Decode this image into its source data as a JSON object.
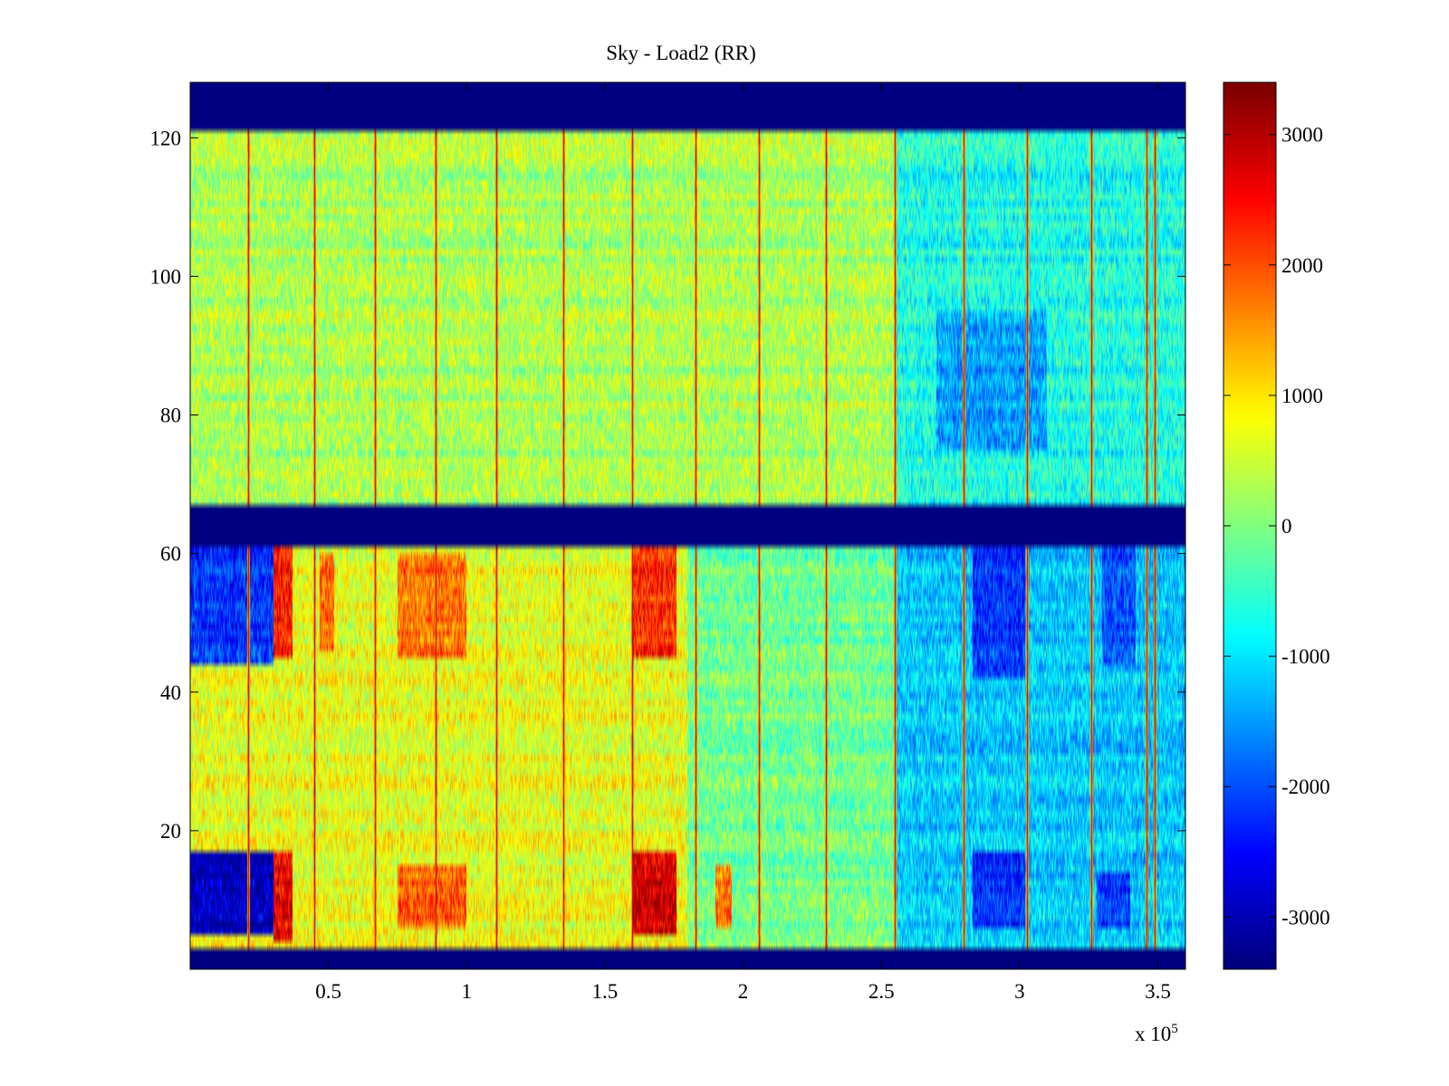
{
  "chart_data": {
    "type": "heatmap",
    "title": "Sky - Load2 (RR)",
    "xlabel": "",
    "ylabel": "",
    "x_multiplier_label": "x 10",
    "x_multiplier_exponent": "5",
    "xlim": [
      0,
      3.6
    ],
    "ylim": [
      0,
      128
    ],
    "x_ticks": [
      0.5,
      1,
      1.5,
      2,
      2.5,
      3,
      3.5
    ],
    "x_tick_labels": [
      "0.5",
      "1",
      "1.5",
      "2",
      "2.5",
      "3",
      "3.5"
    ],
    "y_ticks": [
      20,
      40,
      60,
      80,
      100,
      120
    ],
    "y_tick_labels": [
      "20",
      "40",
      "60",
      "80",
      "100",
      "120"
    ],
    "colorbar": {
      "colormap": "jet",
      "clim": [
        -3400,
        3400
      ],
      "ticks": [
        3000,
        2000,
        1000,
        0,
        -1000,
        -2000,
        -3000
      ],
      "tick_labels": [
        "3000",
        "2000",
        "1000",
        "0",
        "-1000",
        "-2000",
        "-3000"
      ]
    },
    "masked_row_bands": [
      {
        "y_from": 121,
        "y_to": 128,
        "value": -3400
      },
      {
        "y_from": 61,
        "y_to": 67,
        "value": -3400
      },
      {
        "y_from": 0,
        "y_to": 3,
        "value": -3400
      }
    ],
    "base_regions": [
      {
        "x_from": 0,
        "x_to": 2.55,
        "y_from": 67,
        "y_to": 121,
        "value": 300
      },
      {
        "x_from": 2.55,
        "x_to": 3.6,
        "y_from": 67,
        "y_to": 121,
        "value": -700
      },
      {
        "x_from": 0,
        "x_to": 1.8,
        "y_from": 3,
        "y_to": 61,
        "value": 700
      },
      {
        "x_from": 1.8,
        "x_to": 2.55,
        "y_from": 3,
        "y_to": 61,
        "value": -100
      },
      {
        "x_from": 2.55,
        "x_to": 3.6,
        "y_from": 3,
        "y_to": 61,
        "value": -1200
      }
    ],
    "hot_patches": [
      {
        "x_from": 0.3,
        "x_to": 0.37,
        "y_from": 45,
        "y_to": 61,
        "value": 2400
      },
      {
        "x_from": 0.3,
        "x_to": 0.37,
        "y_from": 4,
        "y_to": 17,
        "value": 2600
      },
      {
        "x_from": 0.47,
        "x_to": 0.52,
        "y_from": 46,
        "y_to": 60,
        "value": 1900
      },
      {
        "x_from": 0.75,
        "x_to": 1.0,
        "y_from": 45,
        "y_to": 60,
        "value": 1800
      },
      {
        "x_from": 0.75,
        "x_to": 1.0,
        "y_from": 6,
        "y_to": 15,
        "value": 1900
      },
      {
        "x_from": 1.6,
        "x_to": 1.76,
        "y_from": 45,
        "y_to": 61,
        "value": 2300
      },
      {
        "x_from": 1.6,
        "x_to": 1.76,
        "y_from": 5,
        "y_to": 17,
        "value": 2800
      },
      {
        "x_from": 1.9,
        "x_to": 1.96,
        "y_from": 6,
        "y_to": 15,
        "value": 1700
      }
    ],
    "cold_patches": [
      {
        "x_from": 0,
        "x_to": 0.3,
        "y_from": 44,
        "y_to": 61,
        "value": -2200
      },
      {
        "x_from": 0,
        "x_to": 0.3,
        "y_from": 5,
        "y_to": 17,
        "value": -3000
      },
      {
        "x_from": 2.83,
        "x_to": 3.02,
        "y_from": 42,
        "y_to": 61,
        "value": -2200
      },
      {
        "x_from": 2.83,
        "x_to": 3.02,
        "y_from": 6,
        "y_to": 17,
        "value": -2300
      },
      {
        "x_from": 3.3,
        "x_to": 3.42,
        "y_from": 44,
        "y_to": 61,
        "value": -2000
      },
      {
        "x_from": 3.28,
        "x_to": 3.4,
        "y_from": 6,
        "y_to": 14,
        "value": -2200
      },
      {
        "x_from": 2.7,
        "x_to": 3.1,
        "y_from": 75,
        "y_to": 95,
        "value": -1500
      }
    ],
    "vertical_spikes": {
      "value": 3300,
      "x_positions": [
        0.21,
        0.45,
        0.67,
        0.89,
        1.11,
        1.35,
        1.6,
        1.83,
        2.06,
        2.3,
        2.55,
        2.8,
        3.03,
        3.26,
        3.46,
        3.49
      ]
    }
  }
}
